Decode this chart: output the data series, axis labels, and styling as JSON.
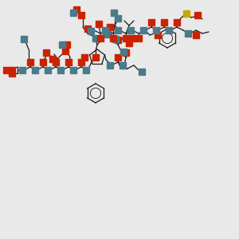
{
  "background_color": "#e9e9e9",
  "bond_color": "#1a1a1a",
  "atom_colors": {
    "N": "#4a7a8c",
    "O": "#cc2200",
    "S": "#c8a800",
    "C": "#1a1a1a"
  },
  "figsize": [
    3.0,
    3.0
  ],
  "dpi": 100,
  "xlim": [
    0,
    300
  ],
  "ylim": [
    0,
    300
  ]
}
